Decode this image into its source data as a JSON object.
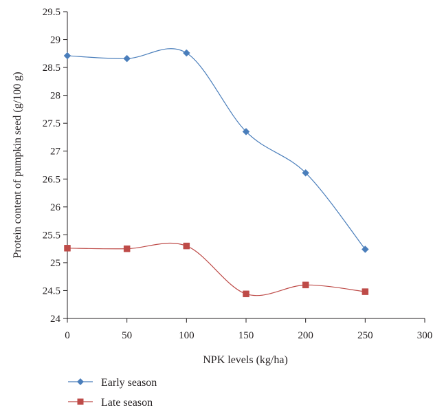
{
  "chart_data": {
    "type": "line",
    "smooth": true,
    "xlabel": "NPK levels (kg/ha)",
    "ylabel": "Protein content of pumpkin seed (g/100 g)",
    "xlim": [
      0,
      300
    ],
    "ylim": [
      24,
      29.5
    ],
    "xticks": [
      0,
      50,
      100,
      150,
      200,
      250,
      300
    ],
    "yticks": [
      24,
      24.5,
      25,
      25.5,
      26,
      26.5,
      27,
      27.5,
      28,
      28.5,
      29,
      29.5
    ],
    "xtick_labels": [
      "0",
      "50",
      "100",
      "150",
      "200",
      "250",
      "300"
    ],
    "ytick_labels": [
      "24",
      "24.5",
      "25",
      "25.5",
      "26",
      "26.5",
      "27",
      "27.5",
      "28",
      "28.5",
      "29",
      "29.5"
    ],
    "grid": false,
    "legend_position": "bottom-left",
    "x": [
      0,
      50,
      100,
      150,
      200,
      250
    ],
    "series": [
      {
        "name": "Early season",
        "values": [
          28.71,
          28.66,
          28.76,
          27.35,
          26.61,
          25.24
        ],
        "color": "#4a7ebb",
        "marker": "diamond"
      },
      {
        "name": "Late season",
        "values": [
          25.26,
          25.25,
          25.3,
          24.44,
          24.6,
          24.48
        ],
        "color": "#be4b48",
        "marker": "square"
      }
    ]
  }
}
